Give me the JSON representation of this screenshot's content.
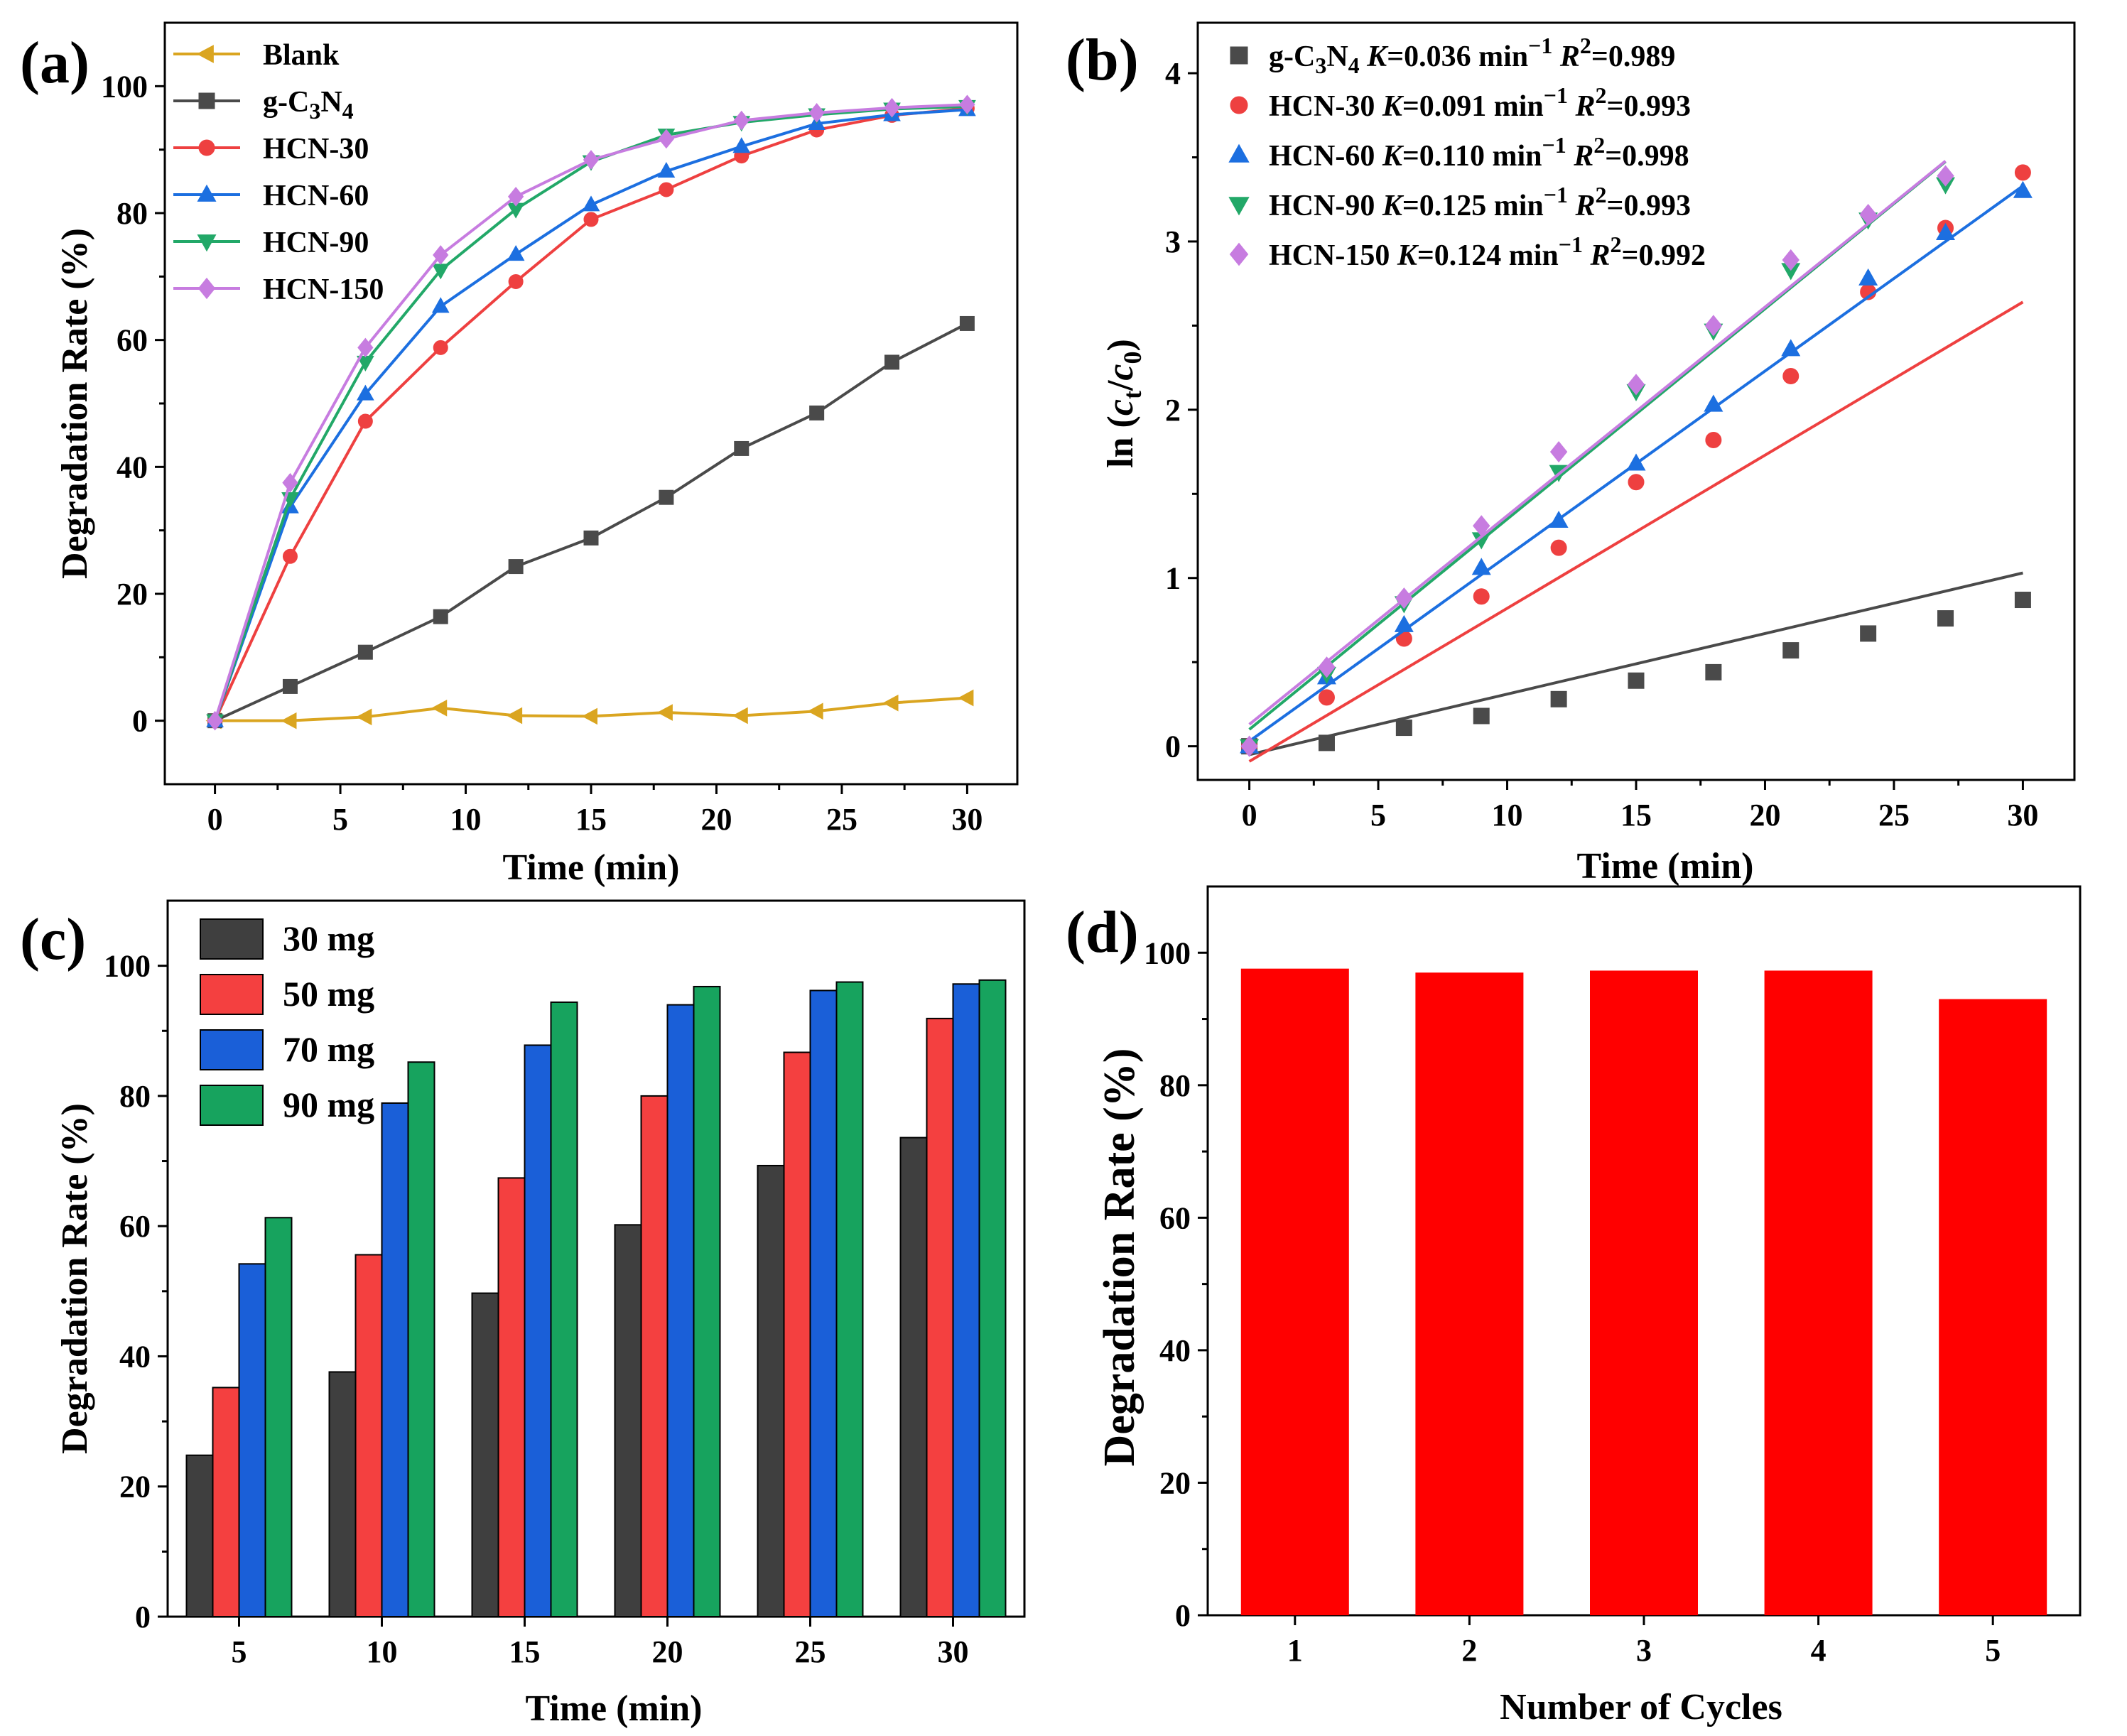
{
  "figure": {
    "panels": [
      {
        "label": "(a)"
      },
      {
        "label": "(b)"
      },
      {
        "label": "(c)"
      },
      {
        "label": "(d)"
      }
    ]
  },
  "chart_data": [
    {
      "type": "line",
      "panel": "(a)",
      "xlabel": "Time (min)",
      "ylabel": "Degradation Rate (%)",
      "xlim": [
        -2,
        32
      ],
      "ylim": [
        -10,
        110
      ],
      "xticks": [
        0,
        5,
        10,
        15,
        20,
        25,
        30
      ],
      "yticks": [
        0,
        20,
        40,
        60,
        80,
        100
      ],
      "x": [
        0,
        3,
        6,
        9,
        12,
        15,
        18,
        21,
        24,
        27,
        30
      ],
      "legend_position": "top-left",
      "series": [
        {
          "name": "Blank",
          "marker": "triangle-left",
          "color": "#DAA520",
          "values": [
            0,
            0,
            0.6,
            2.0,
            0.8,
            0.7,
            1.3,
            0.8,
            1.5,
            2.8,
            3.6
          ]
        },
        {
          "name": "g-C3N4",
          "name_main": "g-C",
          "name_sub1": "3",
          "name_mid": "N",
          "name_sub2": "4",
          "marker": "square",
          "color": "#4A4A4A",
          "values": [
            0,
            5.4,
            10.8,
            16.4,
            24.3,
            28.8,
            35.2,
            42.9,
            48.5,
            56.5,
            62.6
          ]
        },
        {
          "name": "HCN-30",
          "marker": "circle",
          "color": "#EE4040",
          "values": [
            0,
            25.9,
            47.2,
            58.8,
            69.2,
            79.0,
            83.7,
            89.0,
            93.1,
            95.4,
            96.5
          ]
        },
        {
          "name": "HCN-60",
          "marker": "triangle-up",
          "color": "#1C6FE0",
          "values": [
            0,
            33.7,
            51.5,
            65.3,
            73.5,
            81.3,
            86.6,
            90.5,
            94.1,
            95.5,
            96.3
          ]
        },
        {
          "name": "HCN-90",
          "marker": "triangle-down",
          "color": "#22A868",
          "values": [
            0,
            35.0,
            56.5,
            71.0,
            80.6,
            88.1,
            92.3,
            94.3,
            95.5,
            96.4,
            96.8
          ]
        },
        {
          "name": "HCN-150",
          "marker": "diamond",
          "color": "#C77CE0",
          "values": [
            0,
            37.5,
            58.8,
            73.4,
            82.6,
            88.4,
            91.7,
            94.6,
            95.8,
            96.6,
            97.1
          ]
        }
      ]
    },
    {
      "type": "scatter",
      "panel": "(b)",
      "xlabel": "Time (min)",
      "ylabel_prefix": "ln (",
      "ylabel_c": "c",
      "ylabel_sub_t": "t",
      "ylabel_slash": "/",
      "ylabel_sub_0": "0",
      "ylabel_suffix": ")",
      "xlim": [
        -2,
        32
      ],
      "ylim": [
        -0.2,
        4.3
      ],
      "xticks": [
        0,
        5,
        10,
        15,
        20,
        25,
        30
      ],
      "yticks": [
        0,
        1,
        2,
        3,
        4
      ],
      "x": [
        0,
        3,
        6,
        9,
        12,
        15,
        18,
        21,
        24,
        27,
        30
      ],
      "legend_position": "top-left",
      "series": [
        {
          "name": "g-C3N4",
          "marker": "square",
          "color": "#4A4A4A",
          "k_text": "K=0.036 min",
          "k": 0.036,
          "r2": "=0.989",
          "values": [
            0,
            0.02,
            0.11,
            0.18,
            0.28,
            0.39,
            0.44,
            0.57,
            0.67,
            0.76,
            0.87
          ],
          "fit": {
            "x0": 0,
            "x1": 30,
            "intercept": -0.05
          }
        },
        {
          "name": "HCN-30",
          "marker": "circle",
          "color": "#EE4040",
          "k_text": "K=0.091 min",
          "k": 0.091,
          "r2": "=0.993",
          "values": [
            0,
            0.29,
            0.64,
            0.89,
            1.18,
            1.57,
            1.82,
            2.2,
            2.7,
            3.08,
            3.41
          ],
          "fit": {
            "x0": 0,
            "x1": 30,
            "intercept": -0.09
          }
        },
        {
          "name": "HCN-60",
          "marker": "triangle-up",
          "color": "#1C6FE0",
          "k_text": "K=0.110 min",
          "k": 0.11,
          "r2": "=0.998",
          "values": [
            0,
            0.41,
            0.72,
            1.06,
            1.34,
            1.68,
            2.03,
            2.36,
            2.78,
            3.05,
            3.3
          ],
          "fit": {
            "x0": 0,
            "x1": 30,
            "intercept": 0.03
          }
        },
        {
          "name": "HCN-90",
          "marker": "triangle-down",
          "color": "#22A868",
          "k_text": "K=0.125 min",
          "k": 0.125,
          "r2": "=0.993",
          "values": [
            0,
            0.43,
            0.85,
            1.23,
            1.63,
            2.11,
            2.47,
            2.83,
            3.13,
            3.34
          ],
          "fit": {
            "x0": 0,
            "x1": 27,
            "intercept": 0.1
          }
        },
        {
          "name": "HCN-150",
          "marker": "diamond",
          "color": "#C77CE0",
          "k_text": "K=0.124 min",
          "k": 0.124,
          "r2": "=0.992",
          "values": [
            0,
            0.47,
            0.88,
            1.31,
            1.75,
            2.15,
            2.5,
            2.89,
            3.16,
            3.39
          ],
          "fit": {
            "x0": 0,
            "x1": 27,
            "intercept": 0.13
          }
        }
      ]
    },
    {
      "type": "bar",
      "panel": "(c)",
      "xlabel": "Time (min)",
      "ylabel": "Degradation Rate (%)",
      "ylim": [
        0,
        110
      ],
      "yticks": [
        0,
        20,
        40,
        60,
        80,
        100
      ],
      "categories": [
        "5",
        "10",
        "15",
        "20",
        "25",
        "30"
      ],
      "legend_position": "top-left",
      "series": [
        {
          "name": "30 mg",
          "color": "#3F3F3F",
          "values": [
            24.8,
            37.6,
            49.7,
            60.2,
            69.3,
            73.6
          ]
        },
        {
          "name": "50 mg",
          "color": "#F44040",
          "values": [
            35.2,
            55.6,
            67.4,
            80.0,
            86.7,
            91.9
          ]
        },
        {
          "name": "70 mg",
          "color": "#1A5FD8",
          "values": [
            54.2,
            78.9,
            87.8,
            94.0,
            96.2,
            97.2
          ]
        },
        {
          "name": "90 mg",
          "color": "#17A35E",
          "values": [
            61.3,
            85.2,
            94.4,
            96.8,
            97.5,
            97.8
          ]
        }
      ]
    },
    {
      "type": "bar",
      "panel": "(d)",
      "xlabel": "Number of Cycles",
      "ylabel": "Degradation Rate (%)",
      "ylim": [
        0,
        110
      ],
      "yticks": [
        0,
        20,
        40,
        60,
        80,
        100
      ],
      "categories": [
        "1",
        "2",
        "3",
        "4",
        "5"
      ],
      "series": [
        {
          "name": "Degradation Rate",
          "color": "#FF0000",
          "values": [
            97.6,
            97.0,
            97.3,
            97.3,
            93.0
          ]
        }
      ]
    }
  ]
}
